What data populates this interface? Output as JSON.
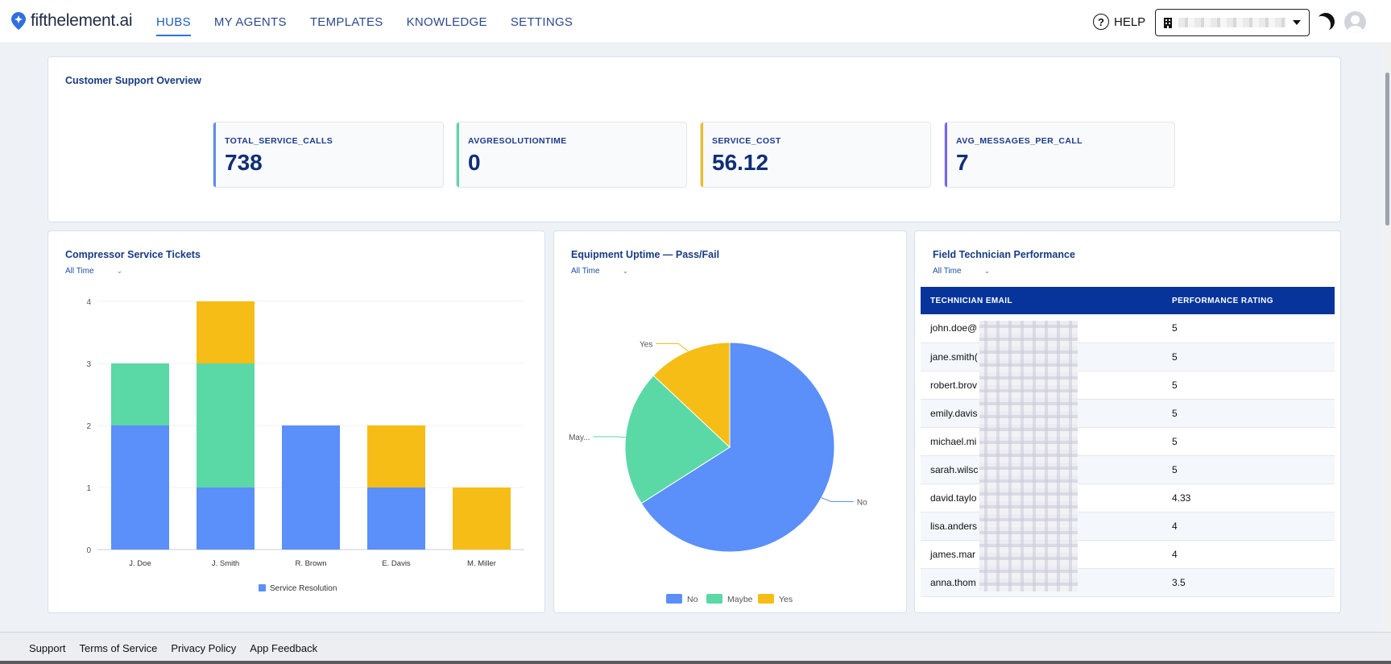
{
  "brand": {
    "name": "fifthelement.ai"
  },
  "nav": {
    "items": [
      {
        "label": "HUBS",
        "active": true
      },
      {
        "label": "MY AGENTS"
      },
      {
        "label": "TEMPLATES"
      },
      {
        "label": "KNOWLEDGE"
      },
      {
        "label": "SETTINGS"
      }
    ]
  },
  "header": {
    "help_label": "HELP",
    "org_selector": {
      "value": "",
      "icon": "building-icon"
    }
  },
  "overview": {
    "title": "Customer Support Overview",
    "kpis": [
      {
        "label": "TOTAL_SERVICE_CALLS",
        "value": "738",
        "color": "#5b8def"
      },
      {
        "label": "AVGRESOLUTIONTIME",
        "value": "0",
        "color": "#5dd5a4"
      },
      {
        "label": "SERVICE_COST",
        "value": "56.12",
        "color": "#f2bc1d"
      },
      {
        "label": "AVG_MESSAGES_PER_CALL",
        "value": "7",
        "color": "#7966e8"
      }
    ]
  },
  "tickets": {
    "title": "Compressor Service Tickets",
    "filter": "All Time",
    "legend": "Service Resolution"
  },
  "uptime": {
    "title": "Equipment Uptime — Pass/Fail",
    "filter": "All Time",
    "legend": [
      "No",
      "Maybe",
      "Yes"
    ],
    "slice_labels": [
      "No",
      "May...",
      "Yes"
    ]
  },
  "technicians": {
    "title": "Field Technician Performance",
    "filter": "All Time",
    "columns": [
      "TECHNICIAN EMAIL",
      "PERFORMANCE RATING"
    ],
    "rows": [
      {
        "email": "john.doe@",
        "rating": "5"
      },
      {
        "email": "jane.smith(",
        "rating": "5"
      },
      {
        "email": "robert.brov",
        "rating": "5"
      },
      {
        "email": "emily.davis",
        "rating": "5"
      },
      {
        "email": "michael.mi",
        "rating": "5"
      },
      {
        "email": "sarah.wilsc",
        "rating": "5"
      },
      {
        "email": "david.taylo",
        "rating": "4.33"
      },
      {
        "email": "lisa.anders",
        "rating": "4"
      },
      {
        "email": "james.mar",
        "rating": "4"
      },
      {
        "email": "anna.thom",
        "rating": "3.5"
      }
    ]
  },
  "footer": {
    "links": [
      "Support",
      "Terms of Service",
      "Privacy Policy",
      "App Feedback"
    ]
  },
  "chart_data": [
    {
      "type": "bar",
      "stacked": true,
      "categories": [
        "J. Doe",
        "J. Smith",
        "R. Brown",
        "E. Davis",
        "M. Miller"
      ],
      "series": [
        {
          "name": "Service Resolution",
          "values": [
            2,
            1,
            2,
            1,
            0
          ],
          "color": "#5b8ff9"
        },
        {
          "values": [
            1,
            2,
            0,
            0,
            0
          ],
          "color": "#5ad8a6"
        },
        {
          "values": [
            0,
            1,
            0,
            1,
            1
          ],
          "color": "#f6bd16"
        }
      ],
      "ylim": [
        0,
        4
      ],
      "yticks": [
        0,
        1,
        2,
        3,
        4
      ],
      "grid": true,
      "legend": "bottom"
    },
    {
      "type": "pie",
      "labels": [
        "No",
        "Maybe",
        "Yes"
      ],
      "values": [
        66,
        21,
        13
      ],
      "colors": [
        "#5b8ff9",
        "#5ad8a6",
        "#f6bd16"
      ],
      "legend": "bottom"
    }
  ]
}
